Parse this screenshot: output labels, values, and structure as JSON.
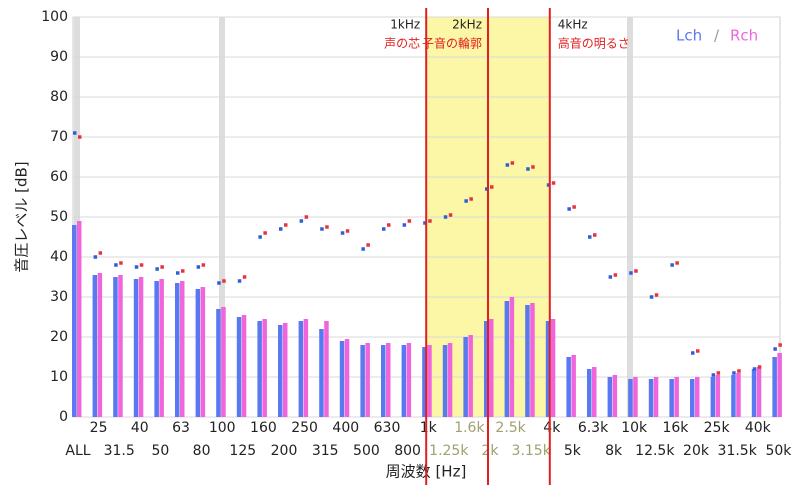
{
  "chart_data": {
    "type": "bar",
    "ylabel": "音圧レベル [dB]",
    "xlabel": "周波数 [Hz]",
    "categories": [
      "ALL",
      "25",
      "31.5",
      "40",
      "50",
      "63",
      "80",
      "100",
      "125",
      "160",
      "200",
      "250",
      "315",
      "400",
      "500",
      "630",
      "800",
      "1k",
      "1.25k",
      "1.6k",
      "2k",
      "2.5k",
      "3.15k",
      "4k",
      "5k",
      "6.3k",
      "8k",
      "10k",
      "12.5k",
      "16k",
      "20k",
      "25k",
      "31.5k",
      "40k",
      "50k"
    ],
    "series": [
      {
        "name": "Lch",
        "color": "#5a78f0",
        "peak_color": "#2f5fd8",
        "values": [
          48,
          35.5,
          35,
          34.5,
          34,
          33.5,
          32,
          27,
          25,
          24,
          23,
          24,
          22,
          19,
          18,
          18,
          18,
          17.5,
          18,
          20,
          24,
          29,
          28,
          24,
          15,
          12,
          10,
          9.5,
          9.5,
          9.5,
          9.5,
          10,
          10.5,
          12,
          15
        ],
        "peaks": [
          71,
          40,
          38,
          37.5,
          37,
          36,
          37.5,
          33.5,
          34,
          45,
          47,
          49,
          47,
          46,
          42,
          47,
          48,
          48.5,
          50,
          54,
          57,
          63,
          62,
          58,
          52,
          45,
          35,
          36,
          30,
          38,
          16,
          10.5,
          11,
          12,
          17
        ]
      },
      {
        "name": "Rch",
        "color": "#f064dc",
        "peak_color": "#e8323c",
        "values": [
          49,
          36,
          35.5,
          35,
          34.5,
          34,
          32.5,
          27.5,
          25.5,
          24.5,
          23.5,
          24.5,
          24,
          19.5,
          18.5,
          18.5,
          18.5,
          18,
          18.5,
          20.5,
          24.5,
          30,
          28.5,
          24.5,
          15.5,
          12.5,
          10.5,
          10,
          10,
          10,
          10,
          10.5,
          11,
          12.5,
          16
        ],
        "peaks": [
          70,
          41,
          38.5,
          38,
          37.5,
          36.5,
          38,
          34,
          35,
          46,
          48,
          50,
          47.5,
          46.5,
          43,
          48,
          49,
          49,
          50.5,
          54.5,
          57.5,
          63.5,
          62.5,
          58.5,
          52.5,
          45.5,
          35.5,
          36.5,
          30.5,
          38.5,
          16.5,
          11,
          11.5,
          12.5,
          18
        ]
      }
    ],
    "markers": [
      {
        "at": "1k",
        "label": "1kHz",
        "note": "声の芯"
      },
      {
        "at": "2k",
        "label": "2kHz",
        "note": "子音の輪郭"
      },
      {
        "at": "4k",
        "label": "4kHz",
        "note": "高音の明るさ"
      }
    ],
    "legend_separator": "/",
    "ylim": [
      0,
      100
    ],
    "yticks": [
      0,
      10,
      20,
      30,
      40,
      50,
      60,
      70,
      80,
      90,
      100
    ],
    "grid": true
  }
}
